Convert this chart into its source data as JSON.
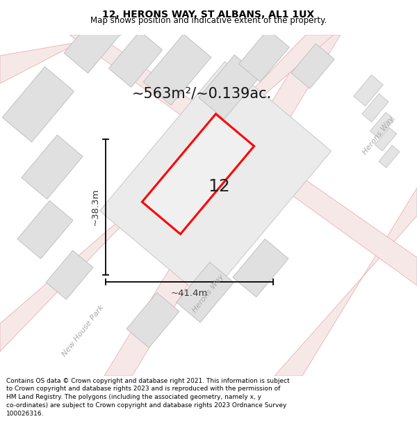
{
  "title_line1": "12, HERONS WAY, ST ALBANS, AL1 1UX",
  "title_line2": "Map shows position and indicative extent of the property.",
  "area_text": "~563m²/~0.139ac.",
  "label_number": "12",
  "dim_width": "~41.4m",
  "dim_height": "~38.3m",
  "label_herons_way_diag": "Herons Way",
  "label_new_house_park": "New House Park",
  "label_herons_way_right": "Herons Way",
  "footer_text": "Contains OS data © Crown copyright and database right 2021. This information is subject to Crown copyright and database rights 2023 and is reproduced with the permission of HM Land Registry. The polygons (including the associated geometry, namely x, y co-ordinates) are subject to Crown copyright and database rights 2023 Ordnance Survey 100026316.",
  "bg_color": "#f2f2f2",
  "plot_fill": "#f0f0f0",
  "plot_color": "#ff0000",
  "road_fill": "#f7e8e8",
  "road_stroke": "#e8b0b0",
  "building_fill": "#e0e0e0",
  "building_stroke": "#c0c0c0",
  "block_fill": "#e8e8e8",
  "block_stroke": "#b8b8b8",
  "dim_color": "#333333",
  "road_label_color": "#aaaaaa",
  "title_fs": 10,
  "subtitle_fs": 8.5,
  "area_fs": 15,
  "label_fs": 18,
  "dim_fs": 9.5,
  "road_label_fs": 8,
  "footer_fs": 6.5
}
